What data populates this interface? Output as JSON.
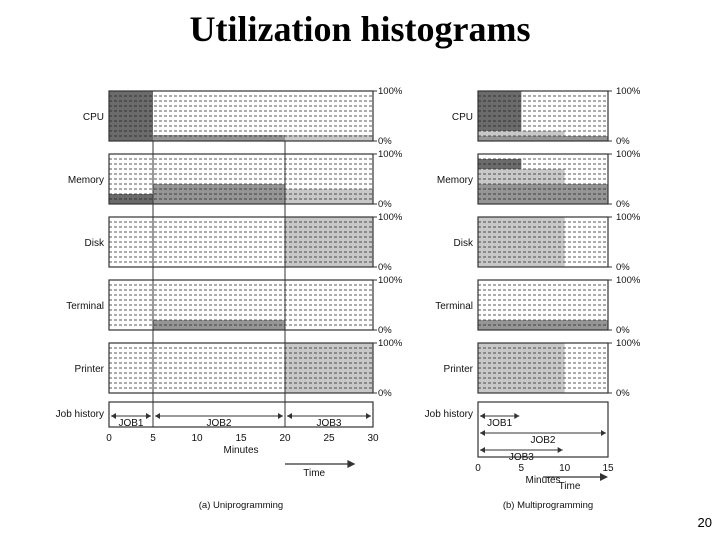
{
  "title": "Utilization histograms",
  "page_number": "20",
  "colors": {
    "dark": "#6b6b6b",
    "medium": "#959595",
    "light": "#c8c8c8",
    "line": "#333333"
  },
  "resources": [
    "CPU",
    "Memory",
    "Disk",
    "Terminal",
    "Printer"
  ],
  "pct_top": "100%",
  "pct_bottom": "0%",
  "job_history_label": "Job history",
  "minutes_label": "Minutes",
  "time_label": "Time",
  "panels": [
    {
      "caption": "(a) Uniprogramming",
      "x_max": 30,
      "x_ticks": [
        "0",
        "5",
        "10",
        "15",
        "20",
        "25",
        "30"
      ],
      "dividers": [
        5,
        20
      ],
      "bars": [
        [
          {
            "x0": 0,
            "x1": 5,
            "y0": 0,
            "y1": 100,
            "c": "dark"
          },
          {
            "x0": 5,
            "x1": 20,
            "y0": 0,
            "y1": 12,
            "c": "medium"
          },
          {
            "x0": 20,
            "x1": 30,
            "y0": 0,
            "y1": 12,
            "c": "light"
          }
        ],
        [
          {
            "x0": 0,
            "x1": 5,
            "y0": 0,
            "y1": 20,
            "c": "dark"
          },
          {
            "x0": 5,
            "x1": 20,
            "y0": 0,
            "y1": 40,
            "c": "medium"
          },
          {
            "x0": 20,
            "x1": 30,
            "y0": 0,
            "y1": 30,
            "c": "light"
          }
        ],
        [
          {
            "x0": 20,
            "x1": 30,
            "y0": 0,
            "y1": 100,
            "c": "light"
          }
        ],
        [
          {
            "x0": 5,
            "x1": 20,
            "y0": 0,
            "y1": 20,
            "c": "medium"
          }
        ],
        [
          {
            "x0": 20,
            "x1": 30,
            "y0": 0,
            "y1": 100,
            "c": "light"
          }
        ]
      ],
      "jobs": [
        {
          "label": "JOB1",
          "x0": 0,
          "x1": 5,
          "row": 0
        },
        {
          "label": "JOB2",
          "x0": 5,
          "x1": 20,
          "row": 0
        },
        {
          "label": "JOB3",
          "x0": 20,
          "x1": 30,
          "row": 0
        }
      ]
    },
    {
      "caption": "(b) Multiprogramming",
      "x_max": 15,
      "x_ticks": [
        "0",
        "5",
        "10",
        "15"
      ],
      "dividers": [],
      "bars": [
        [
          {
            "x0": 0,
            "x1": 5,
            "y0": 0,
            "y1": 100,
            "c": "dark"
          },
          {
            "x0": 0,
            "x1": 10,
            "y0": 0,
            "y1": 20,
            "c": "light"
          },
          {
            "x0": 0,
            "x1": 15,
            "y0": 0,
            "y1": 10,
            "c": "medium"
          }
        ],
        [
          {
            "x0": 0,
            "x1": 15,
            "y0": 0,
            "y1": 40,
            "c": "medium"
          },
          {
            "x0": 0,
            "x1": 10,
            "y0": 40,
            "y1": 70,
            "c": "light"
          },
          {
            "x0": 0,
            "x1": 5,
            "y0": 70,
            "y1": 90,
            "c": "dark"
          }
        ],
        [
          {
            "x0": 0,
            "x1": 10,
            "y0": 0,
            "y1": 100,
            "c": "light"
          }
        ],
        [
          {
            "x0": 0,
            "x1": 15,
            "y0": 0,
            "y1": 20,
            "c": "medium"
          }
        ],
        [
          {
            "x0": 0,
            "x1": 10,
            "y0": 0,
            "y1": 100,
            "c": "light"
          }
        ]
      ],
      "jobs": [
        {
          "label": "JOB1",
          "x0": 0,
          "x1": 5,
          "row": 0
        },
        {
          "label": "JOB2",
          "x0": 0,
          "x1": 15,
          "row": 1
        },
        {
          "label": "JOB3",
          "x0": 0,
          "x1": 10,
          "row": 2
        }
      ]
    }
  ]
}
